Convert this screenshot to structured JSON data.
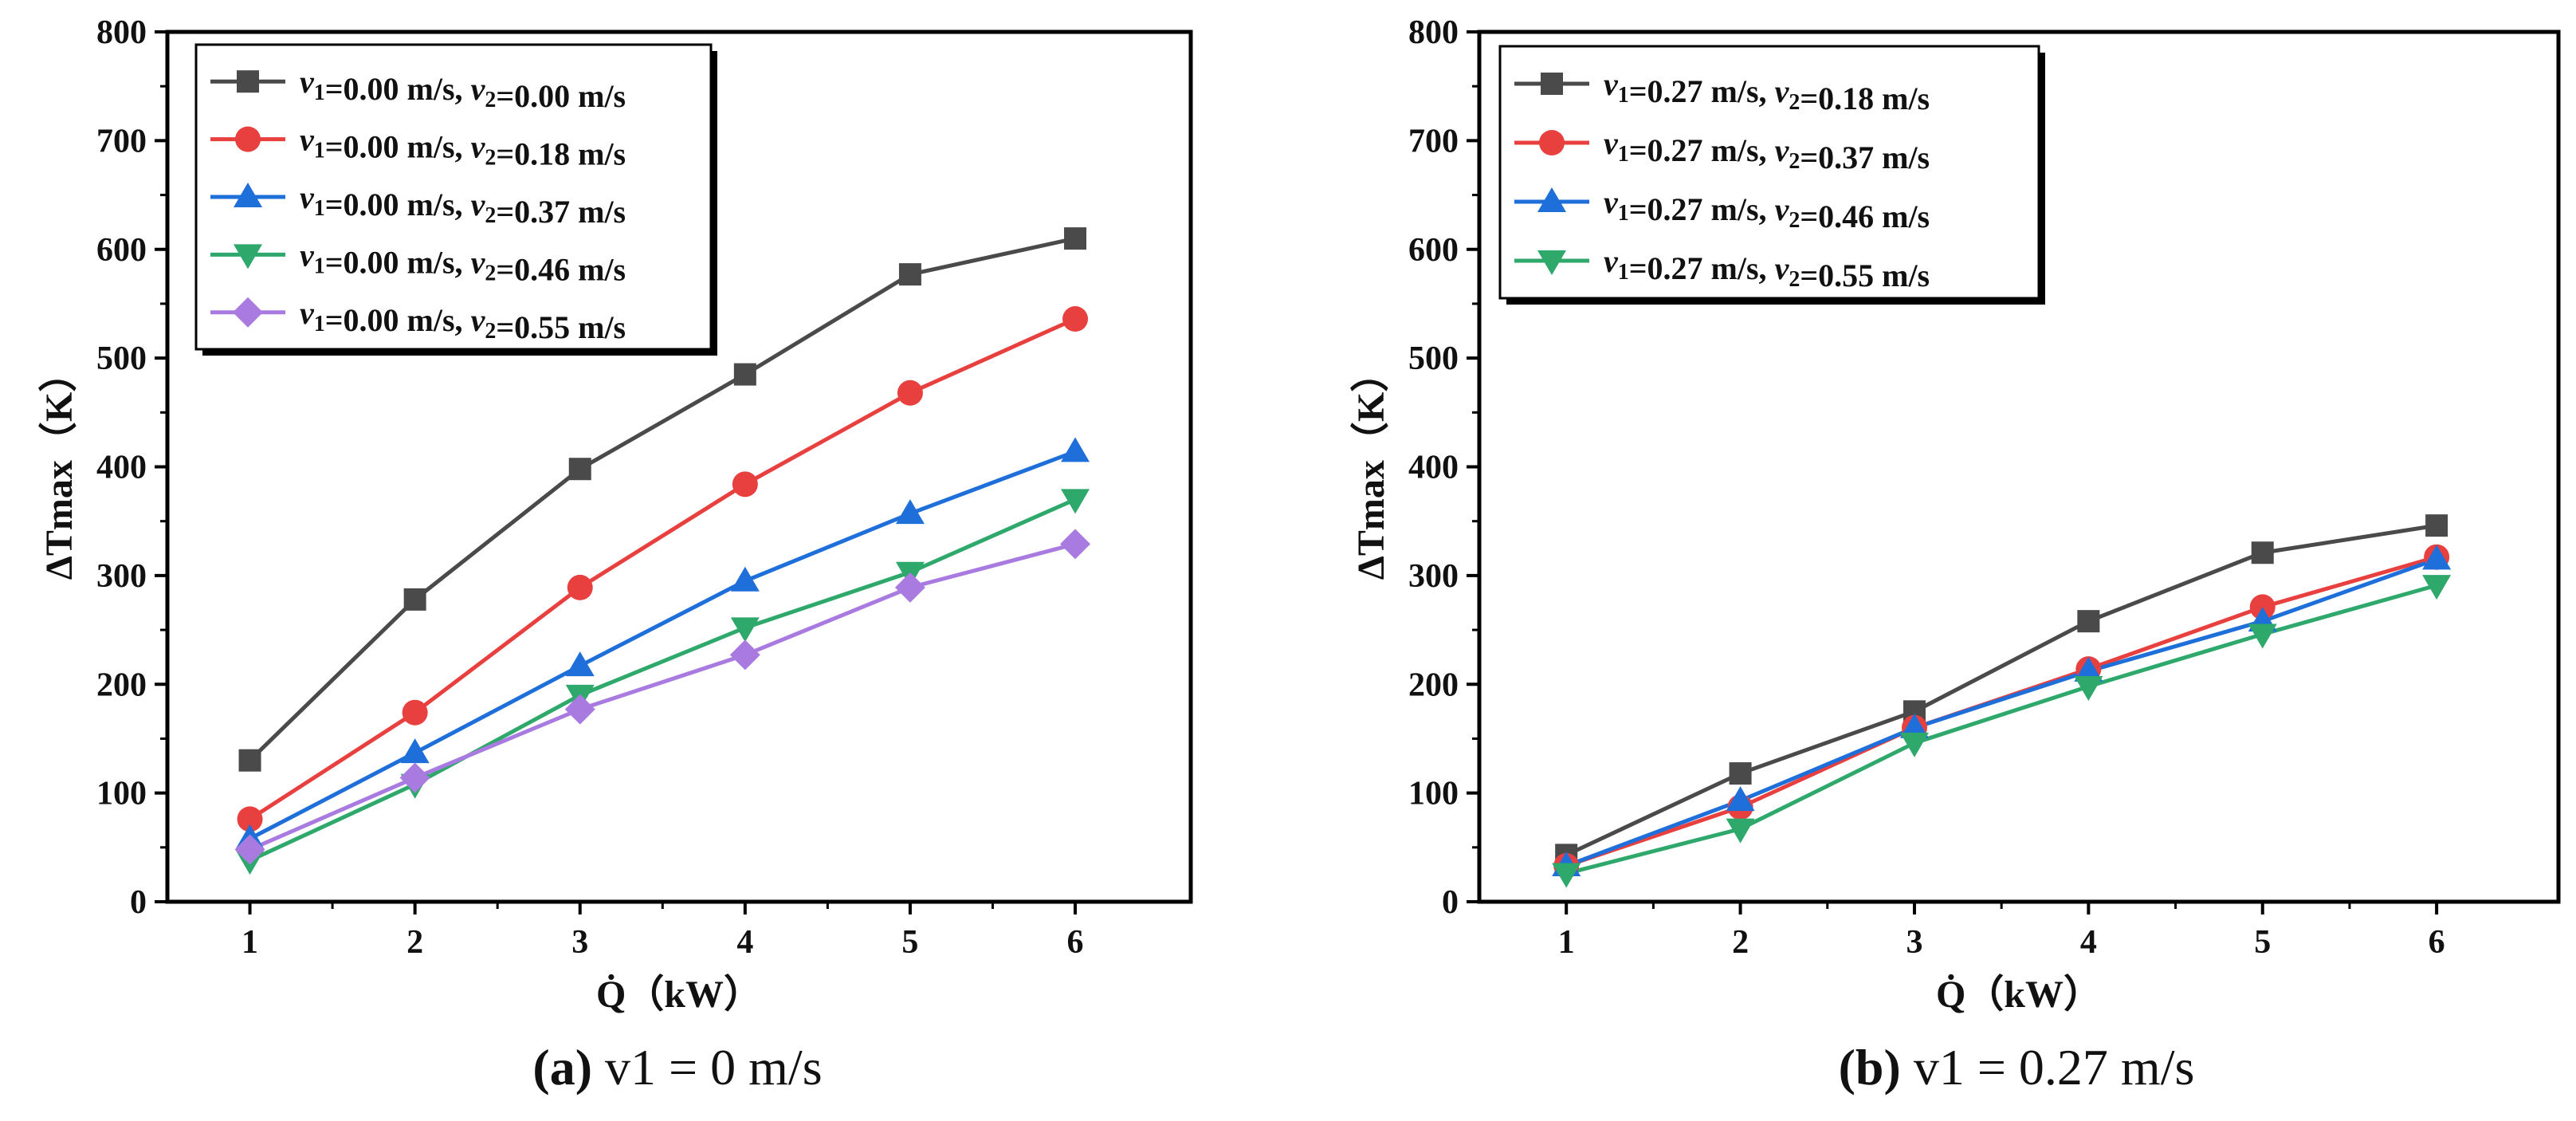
{
  "chart_data": [
    {
      "type": "line",
      "caption_tag": "(a)",
      "caption_rest": "v1 = 0 m/s",
      "xlabel": "Q̇（kW）",
      "ylabel": "ΔTmax（K）",
      "xlim": [
        0.5,
        6.7
      ],
      "ylim": [
        0,
        800
      ],
      "x_ticks": [
        1,
        2,
        3,
        4,
        5,
        6
      ],
      "y_ticks": [
        0,
        100,
        200,
        300,
        400,
        500,
        600,
        700,
        800
      ],
      "x": [
        1,
        2,
        3,
        4,
        5,
        6
      ],
      "legend_position": "top-left",
      "series": [
        {
          "name": "v1=0.00 m/s, v2=0.00 m/s",
          "color": "#4a4a4a",
          "marker": "square",
          "values": [
            130,
            278,
            398,
            485,
            577,
            610
          ]
        },
        {
          "name": "v1=0.00 m/s, v2=0.18 m/s",
          "color": "#e8403f",
          "marker": "circle",
          "values": [
            76,
            174,
            289,
            384,
            468,
            536
          ]
        },
        {
          "name": "v1=0.00 m/s, v2=0.37 m/s",
          "color": "#1e6fd9",
          "marker": "triangle-up",
          "values": [
            58,
            137,
            217,
            295,
            357,
            414
          ]
        },
        {
          "name": "v1=0.00 m/s, v2=0.46 m/s",
          "color": "#2ea86b",
          "marker": "triangle-down",
          "values": [
            38,
            108,
            190,
            252,
            303,
            370
          ]
        },
        {
          "name": "v1=0.00 m/s, v2=0.55 m/s",
          "color": "#a97be0",
          "marker": "diamond",
          "values": [
            48,
            114,
            177,
            227,
            289,
            329
          ]
        }
      ]
    },
    {
      "type": "line",
      "caption_tag": "(b)",
      "caption_rest": "v1 = 0.27 m/s",
      "xlabel": "Q̇（kW）",
      "ylabel": "ΔTmax（K）",
      "xlim": [
        0.5,
        6.7
      ],
      "ylim": [
        0,
        800
      ],
      "x_ticks": [
        1,
        2,
        3,
        4,
        5,
        6
      ],
      "y_ticks": [
        0,
        100,
        200,
        300,
        400,
        500,
        600,
        700,
        800
      ],
      "x": [
        1,
        2,
        3,
        4,
        5,
        6
      ],
      "legend_position": "top-left",
      "series": [
        {
          "name": "v1=0.27 m/s, v2=0.18 m/s",
          "color": "#4a4a4a",
          "marker": "square",
          "values": [
            43,
            118,
            175,
            258,
            321,
            346
          ]
        },
        {
          "name": "v1=0.27 m/s, v2=0.37 m/s",
          "color": "#e8403f",
          "marker": "circle",
          "values": [
            33,
            87,
            160,
            214,
            271,
            317
          ]
        },
        {
          "name": "v1=0.27 m/s, v2=0.46 m/s",
          "color": "#1e6fd9",
          "marker": "triangle-up",
          "values": [
            33,
            93,
            160,
            212,
            258,
            315
          ]
        },
        {
          "name": "v1=0.27 m/s, v2=0.55 m/s",
          "color": "#2ea86b",
          "marker": "triangle-down",
          "values": [
            26,
            67,
            146,
            198,
            246,
            291
          ]
        }
      ]
    }
  ]
}
